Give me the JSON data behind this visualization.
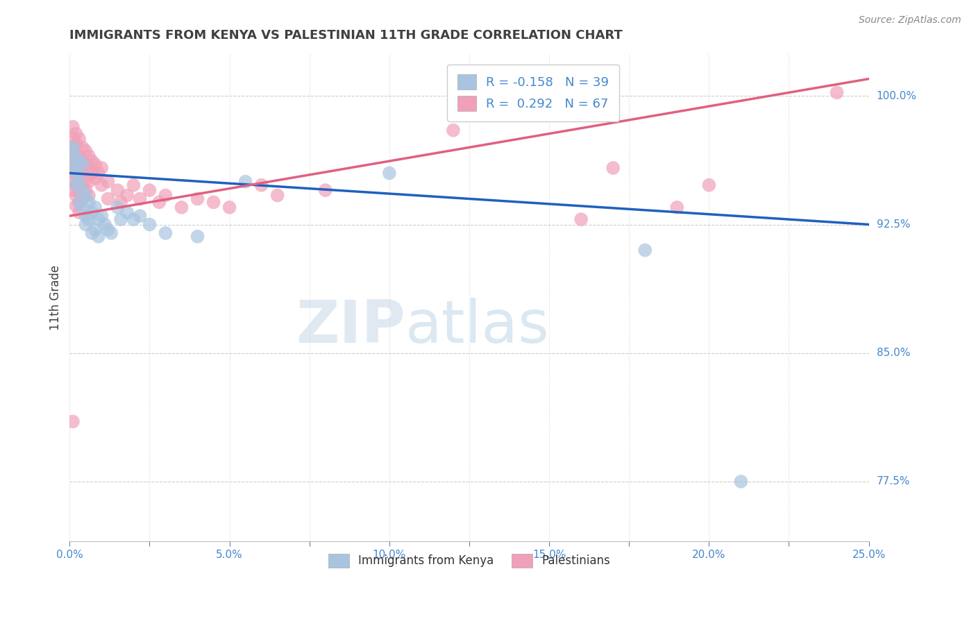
{
  "title": "IMMIGRANTS FROM KENYA VS PALESTINIAN 11TH GRADE CORRELATION CHART",
  "source_text": "Source: ZipAtlas.com",
  "ylabel": "11th Grade",
  "xlim": [
    0.0,
    0.25
  ],
  "ylim": [
    0.74,
    1.025
  ],
  "xtick_labels": [
    "0.0%",
    "",
    "5.0%",
    "",
    "10.0%",
    "",
    "15.0%",
    "",
    "20.0%",
    "",
    "25.0%"
  ],
  "xtick_vals": [
    0.0,
    0.025,
    0.05,
    0.075,
    0.1,
    0.125,
    0.15,
    0.175,
    0.2,
    0.225,
    0.25
  ],
  "ytick_labels": [
    "77.5%",
    "85.0%",
    "92.5%",
    "100.0%"
  ],
  "ytick_vals": [
    0.775,
    0.85,
    0.925,
    1.0
  ],
  "kenya_color": "#a8c4e0",
  "palestinian_color": "#f0a0b8",
  "kenya_line_color": "#2060c0",
  "palestinian_line_color": "#e06080",
  "legend_kenya_label": "R = -0.158   N = 39",
  "legend_palestinian_label": "R =  0.292   N = 67",
  "watermark_zip": "ZIP",
  "watermark_atlas": "atlas",
  "bottom_legend_kenya": "Immigrants from Kenya",
  "bottom_legend_palestinian": "Palestinians",
  "title_color": "#404040",
  "tick_label_color": "#4488cc",
  "kenya_line_x": [
    0.0,
    0.25
  ],
  "kenya_line_y": [
    0.955,
    0.925
  ],
  "pal_line_x": [
    0.0,
    0.25
  ],
  "pal_line_y": [
    0.93,
    1.01
  ],
  "kenya_points": [
    [
      0.001,
      0.97
    ],
    [
      0.002,
      0.963
    ],
    [
      0.001,
      0.958
    ],
    [
      0.003,
      0.962
    ],
    [
      0.002,
      0.955
    ],
    [
      0.001,
      0.968
    ],
    [
      0.004,
      0.96
    ],
    [
      0.003,
      0.95
    ],
    [
      0.002,
      0.948
    ],
    [
      0.004,
      0.944
    ],
    [
      0.003,
      0.938
    ],
    [
      0.005,
      0.942
    ],
    [
      0.004,
      0.935
    ],
    [
      0.005,
      0.93
    ],
    [
      0.006,
      0.938
    ],
    [
      0.005,
      0.925
    ],
    [
      0.007,
      0.932
    ],
    [
      0.006,
      0.928
    ],
    [
      0.008,
      0.935
    ],
    [
      0.007,
      0.92
    ],
    [
      0.009,
      0.928
    ],
    [
      0.008,
      0.922
    ],
    [
      0.01,
      0.93
    ],
    [
      0.009,
      0.918
    ],
    [
      0.011,
      0.925
    ],
    [
      0.012,
      0.922
    ],
    [
      0.013,
      0.92
    ],
    [
      0.015,
      0.935
    ],
    [
      0.016,
      0.928
    ],
    [
      0.018,
      0.932
    ],
    [
      0.02,
      0.928
    ],
    [
      0.022,
      0.93
    ],
    [
      0.025,
      0.925
    ],
    [
      0.03,
      0.92
    ],
    [
      0.04,
      0.918
    ],
    [
      0.055,
      0.95
    ],
    [
      0.1,
      0.955
    ],
    [
      0.18,
      0.91
    ],
    [
      0.21,
      0.775
    ]
  ],
  "palestinian_points": [
    [
      0.001,
      0.982
    ],
    [
      0.001,
      0.975
    ],
    [
      0.001,
      0.97
    ],
    [
      0.001,
      0.965
    ],
    [
      0.001,
      0.96
    ],
    [
      0.001,
      0.955
    ],
    [
      0.001,
      0.95
    ],
    [
      0.001,
      0.945
    ],
    [
      0.002,
      0.978
    ],
    [
      0.002,
      0.972
    ],
    [
      0.002,
      0.965
    ],
    [
      0.002,
      0.96
    ],
    [
      0.002,
      0.955
    ],
    [
      0.002,
      0.948
    ],
    [
      0.002,
      0.942
    ],
    [
      0.002,
      0.936
    ],
    [
      0.003,
      0.975
    ],
    [
      0.003,
      0.965
    ],
    [
      0.003,
      0.958
    ],
    [
      0.003,
      0.95
    ],
    [
      0.003,
      0.944
    ],
    [
      0.003,
      0.938
    ],
    [
      0.003,
      0.932
    ],
    [
      0.004,
      0.97
    ],
    [
      0.004,
      0.962
    ],
    [
      0.004,
      0.955
    ],
    [
      0.004,
      0.948
    ],
    [
      0.004,
      0.94
    ],
    [
      0.005,
      0.968
    ],
    [
      0.005,
      0.96
    ],
    [
      0.005,
      0.952
    ],
    [
      0.005,
      0.945
    ],
    [
      0.006,
      0.965
    ],
    [
      0.006,
      0.958
    ],
    [
      0.006,
      0.95
    ],
    [
      0.006,
      0.942
    ],
    [
      0.007,
      0.962
    ],
    [
      0.007,
      0.955
    ],
    [
      0.008,
      0.96
    ],
    [
      0.008,
      0.952
    ],
    [
      0.009,
      0.955
    ],
    [
      0.01,
      0.958
    ],
    [
      0.01,
      0.948
    ],
    [
      0.012,
      0.95
    ],
    [
      0.012,
      0.94
    ],
    [
      0.015,
      0.945
    ],
    [
      0.016,
      0.938
    ],
    [
      0.018,
      0.942
    ],
    [
      0.02,
      0.948
    ],
    [
      0.022,
      0.94
    ],
    [
      0.025,
      0.945
    ],
    [
      0.028,
      0.938
    ],
    [
      0.03,
      0.942
    ],
    [
      0.035,
      0.935
    ],
    [
      0.04,
      0.94
    ],
    [
      0.045,
      0.938
    ],
    [
      0.05,
      0.935
    ],
    [
      0.06,
      0.948
    ],
    [
      0.065,
      0.942
    ],
    [
      0.08,
      0.945
    ],
    [
      0.001,
      0.81
    ],
    [
      0.12,
      0.98
    ],
    [
      0.16,
      0.928
    ],
    [
      0.17,
      0.958
    ],
    [
      0.19,
      0.935
    ],
    [
      0.2,
      0.948
    ],
    [
      0.24,
      1.002
    ]
  ]
}
